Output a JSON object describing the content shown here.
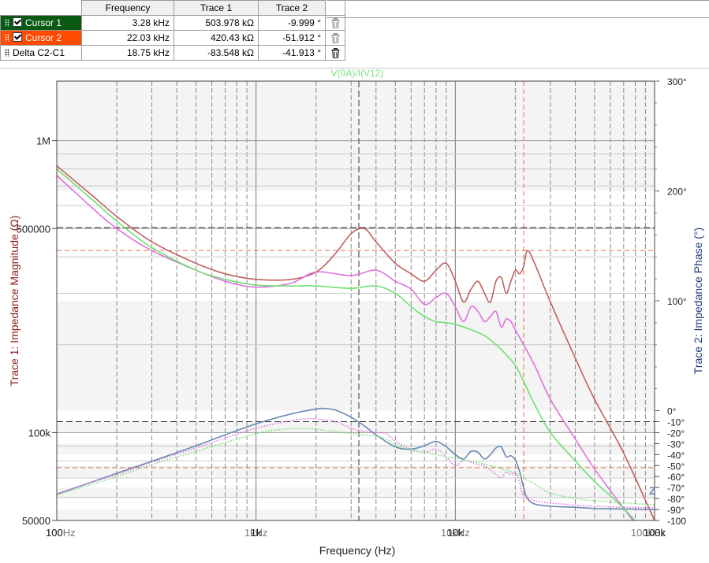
{
  "cursor_table": {
    "headers": [
      "Frequency",
      "Trace 1",
      "Trace 2"
    ],
    "rows": [
      {
        "name": "Cursor 1",
        "frequency": "3.28 kHz",
        "trace1": "503.978 kΩ",
        "trace2": "-9.999 °",
        "color": "#0a5a14"
      },
      {
        "name": "Cursor 2",
        "frequency": "22.03 kHz",
        "trace1": "420.43 kΩ",
        "trace2": "-51.912 °",
        "color": "#ff4a00"
      },
      {
        "name": "Delta C2-C1",
        "frequency": "18.75 kHz",
        "trace1": "-83.548 kΩ",
        "trace2": "-41.913 °"
      }
    ]
  },
  "colors": {
    "magnitude_axis": "#8b1a1a",
    "phase_axis": "#1f3d7a",
    "cursor1": "#333333",
    "cursor2": "#e0704a",
    "red_trace": "#c06060",
    "blue_trace": "#6a8ab0",
    "pink_trace": "#e070e0",
    "green_trace": "#70e070"
  },
  "chart_data": {
    "type": "line",
    "title": "V(0A)/I(V12)",
    "xlabel": "Frequency (Hz)",
    "ylabel_left": "Trace 1: Impedance Magnitude (Ω)",
    "ylabel_right": "Trace 2: Impedance Phase (°)",
    "x_scale": "log",
    "xlim": [
      100,
      100000
    ],
    "y_left_scale": "log",
    "y_left_lim": [
      50000,
      1600000
    ],
    "y_right_lim": [
      -100,
      300
    ],
    "x_ticks": [
      "100",
      "1k",
      "10k",
      "100k"
    ],
    "y_left_ticks": [
      "1M",
      "500000",
      "100k",
      "50000"
    ],
    "y_right_ticks": [
      "300°",
      "200°",
      "100°",
      "0°",
      "-10°",
      "-20°",
      "-30°",
      "-40°",
      "-50°",
      "-60°",
      "-70°",
      "-80°",
      "-90°",
      "-100"
    ],
    "x_tick_label_overlays": [
      "100Hz",
      "1kHz",
      "10kHz",
      "100kHz"
    ],
    "trace_marker": "Z",
    "cursor1": {
      "frequency": 3280,
      "magnitude": 503978,
      "phase": -9.999
    },
    "cursor2": {
      "frequency": 22030,
      "magnitude": 420430,
      "phase": -51.912
    },
    "series": [
      {
        "color": "#c06060",
        "style": "solid",
        "axis": "left",
        "x": [
          100,
          150,
          200,
          300,
          500,
          700,
          1000,
          1500,
          2000,
          2500,
          3000,
          3500,
          4000,
          5000,
          6000,
          7000,
          8000,
          9000,
          10000,
          11000,
          12000,
          13000,
          14000,
          15000,
          16000,
          17000,
          18000,
          19000,
          20000,
          21000,
          22000,
          23000,
          25000,
          30000,
          40000,
          50000,
          70000,
          100000
        ],
        "y": [
          820000,
          650000,
          550000,
          450000,
          380000,
          350000,
          335000,
          335000,
          355000,
          410000,
          480000,
          500000,
          450000,
          380000,
          350000,
          330000,
          360000,
          380000,
          330000,
          280000,
          310000,
          330000,
          300000,
          280000,
          330000,
          340000,
          300000,
          330000,
          360000,
          350000,
          370000,
          420000,
          380000,
          280000,
          180000,
          130000,
          85000,
          50000
        ]
      },
      {
        "color": "#6a8ab0",
        "style": "solid",
        "axis": "right",
        "x": [
          100,
          150,
          200,
          300,
          500,
          700,
          1000,
          1500,
          2000,
          2200,
          2500,
          3000,
          3500,
          4000,
          5000,
          6000,
          7000,
          8000,
          9000,
          10000,
          11000,
          12000,
          13000,
          14000,
          15000,
          16000,
          17000,
          18000,
          19000,
          20000,
          21000,
          22000,
          23000,
          25000,
          30000,
          40000,
          50000,
          70000,
          100000
        ],
        "y": [
          -76,
          -65,
          -57,
          -46,
          -32,
          -22,
          -12,
          -3,
          1.5,
          2,
          0.5,
          -6,
          -14,
          -22,
          -33,
          -35,
          -32,
          -28,
          -33,
          -40,
          -44,
          -37,
          -38,
          -44,
          -40,
          -34,
          -33,
          -42,
          -41,
          -45,
          -55,
          -70,
          -80,
          -85,
          -87,
          -88,
          -89,
          -89.5,
          -90
        ]
      },
      {
        "color": "#e070e0",
        "style": "solid",
        "axis": "left",
        "x": [
          100,
          150,
          200,
          300,
          500,
          700,
          1000,
          1500,
          2000,
          3000,
          4000,
          5000,
          6000,
          7000,
          8000,
          9000,
          10000,
          11000,
          12000,
          13000,
          14000,
          15000,
          16000,
          17000,
          18000,
          19000,
          20000,
          22000,
          25000,
          30000,
          40000,
          50000,
          70000,
          100000
        ],
        "y": [
          760000,
          590000,
          500000,
          420000,
          360000,
          330000,
          315000,
          325000,
          355000,
          345000,
          360000,
          330000,
          310000,
          275000,
          290000,
          300000,
          270000,
          240000,
          270000,
          260000,
          240000,
          250000,
          260000,
          230000,
          245000,
          240000,
          225000,
          200000,
          170000,
          130000,
          95000,
          75000,
          55000,
          40000
        ]
      },
      {
        "color": "#e070e0",
        "style": "dotted",
        "axis": "right",
        "x": [
          100,
          150,
          200,
          300,
          500,
          700,
          1000,
          1500,
          1800,
          2000,
          2500,
          3000,
          3500,
          4000,
          4500,
          5000,
          6000,
          7000,
          8000,
          9000,
          10000,
          11000,
          12000,
          13000,
          14000,
          15000,
          16000,
          17000,
          18000,
          19000,
          20000,
          21000,
          22000,
          25000,
          30000,
          40000,
          50000,
          70000,
          100000
        ],
        "y": [
          -76,
          -65,
          -58,
          -47,
          -34,
          -25,
          -16,
          -9,
          -7.5,
          -7.5,
          -10,
          -16,
          -19,
          -20,
          -21,
          -28,
          -35,
          -38,
          -35,
          -42,
          -50,
          -45,
          -47,
          -49,
          -50,
          -54,
          -58,
          -61,
          -56,
          -58,
          -57,
          -65,
          -77,
          -82,
          -84,
          -86,
          -87,
          -88,
          -88.5
        ]
      },
      {
        "color": "#70e070",
        "style": "solid",
        "axis": "left",
        "x": [
          100,
          150,
          200,
          300,
          500,
          700,
          1000,
          1500,
          2000,
          3000,
          4000,
          5000,
          6000,
          7000,
          8000,
          9000,
          10000,
          12000,
          14000,
          16000,
          18000,
          20000,
          22000,
          25000,
          30000,
          40000,
          50000,
          70000,
          100000
        ],
        "y": [
          800000,
          630000,
          530000,
          430000,
          360000,
          335000,
          320000,
          318000,
          318000,
          312000,
          318000,
          300000,
          270000,
          250000,
          240000,
          238000,
          235000,
          225000,
          215000,
          200000,
          185000,
          170000,
          150000,
          125000,
          100000,
          80000,
          68000,
          55000,
          42000
        ]
      },
      {
        "color": "#70e070",
        "style": "dotted",
        "axis": "right",
        "x": [
          100,
          150,
          200,
          300,
          500,
          700,
          1000,
          1200,
          1500,
          1800,
          2000,
          2500,
          3000,
          3500,
          4000,
          4500,
          5000,
          6000,
          7000,
          8000,
          9000,
          10000,
          12000,
          15000,
          20000,
          25000,
          30000,
          40000,
          50000,
          70000,
          100000
        ],
        "y": [
          -77,
          -67,
          -60,
          -49,
          -37,
          -29,
          -21,
          -18,
          -16.5,
          -16.5,
          -17,
          -19,
          -21,
          -22,
          -23,
          -26,
          -31,
          -36,
          -38,
          -40,
          -42,
          -43,
          -46,
          -50,
          -57,
          -67,
          -75,
          -80,
          -82,
          -84,
          -86
        ]
      }
    ]
  }
}
